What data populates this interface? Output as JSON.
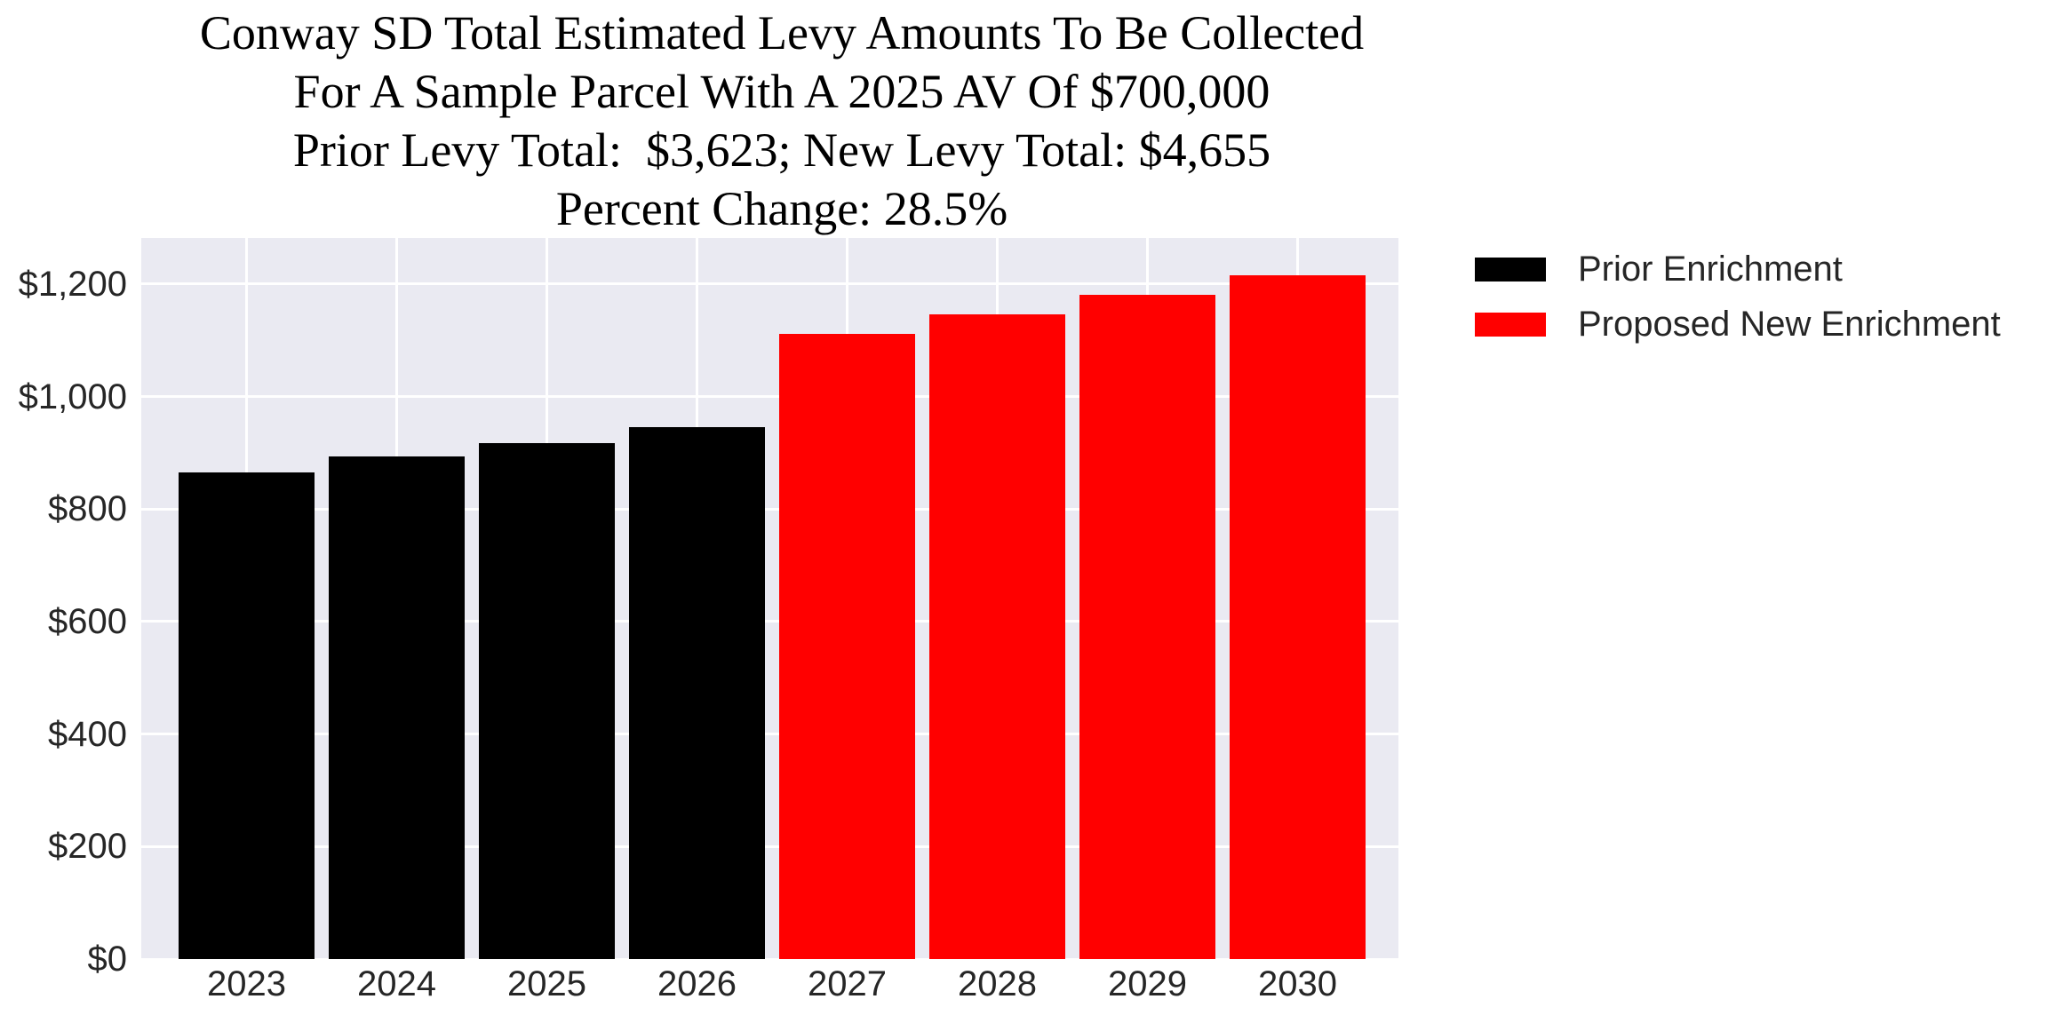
{
  "title": {
    "line1": "Conway SD Total Estimated Levy Amounts To Be Collected",
    "line2": "For A Sample Parcel With A 2025 AV Of $700,000",
    "line3": "Prior Levy Total:  $3,623; New Levy Total: $4,655",
    "line4": "Percent Change: 28.5%"
  },
  "chart_data": {
    "type": "bar",
    "categories": [
      "2023",
      "2024",
      "2025",
      "2026",
      "2027",
      "2028",
      "2029",
      "2030"
    ],
    "values": [
      866,
      893,
      918,
      946,
      1112,
      1146,
      1181,
      1216
    ],
    "bar_colors": [
      "#000000",
      "#000000",
      "#000000",
      "#000000",
      "#ff0000",
      "#ff0000",
      "#ff0000",
      "#ff0000"
    ],
    "series": [
      {
        "name": "Prior Enrichment",
        "color": "#000000",
        "categories": [
          "2023",
          "2024",
          "2025",
          "2026"
        ],
        "values": [
          866,
          893,
          918,
          946
        ]
      },
      {
        "name": "Proposed New Enrichment",
        "color": "#ff0000",
        "categories": [
          "2027",
          "2028",
          "2029",
          "2030"
        ],
        "values": [
          1112,
          1146,
          1181,
          1216
        ]
      }
    ],
    "xlabel": "",
    "ylabel": "",
    "ylim": [
      0,
      1282
    ],
    "y_ticks": [
      0,
      200,
      400,
      600,
      800,
      1000,
      1200
    ],
    "y_tick_labels": [
      "$0",
      "$200",
      "$400",
      "$600",
      "$800",
      "$1,000",
      "$1,200"
    ],
    "grid": true,
    "legend": {
      "position": "outside-upper-right",
      "entries": [
        {
          "label": "Prior Enrichment",
          "color": "#000000"
        },
        {
          "label": "Proposed New Enrichment",
          "color": "#ff0000"
        }
      ]
    },
    "colors": {
      "plot_bg": "#eaeaf2",
      "gridline": "#ffffff",
      "tick_text": "#262626",
      "title_text": "#000000"
    }
  }
}
